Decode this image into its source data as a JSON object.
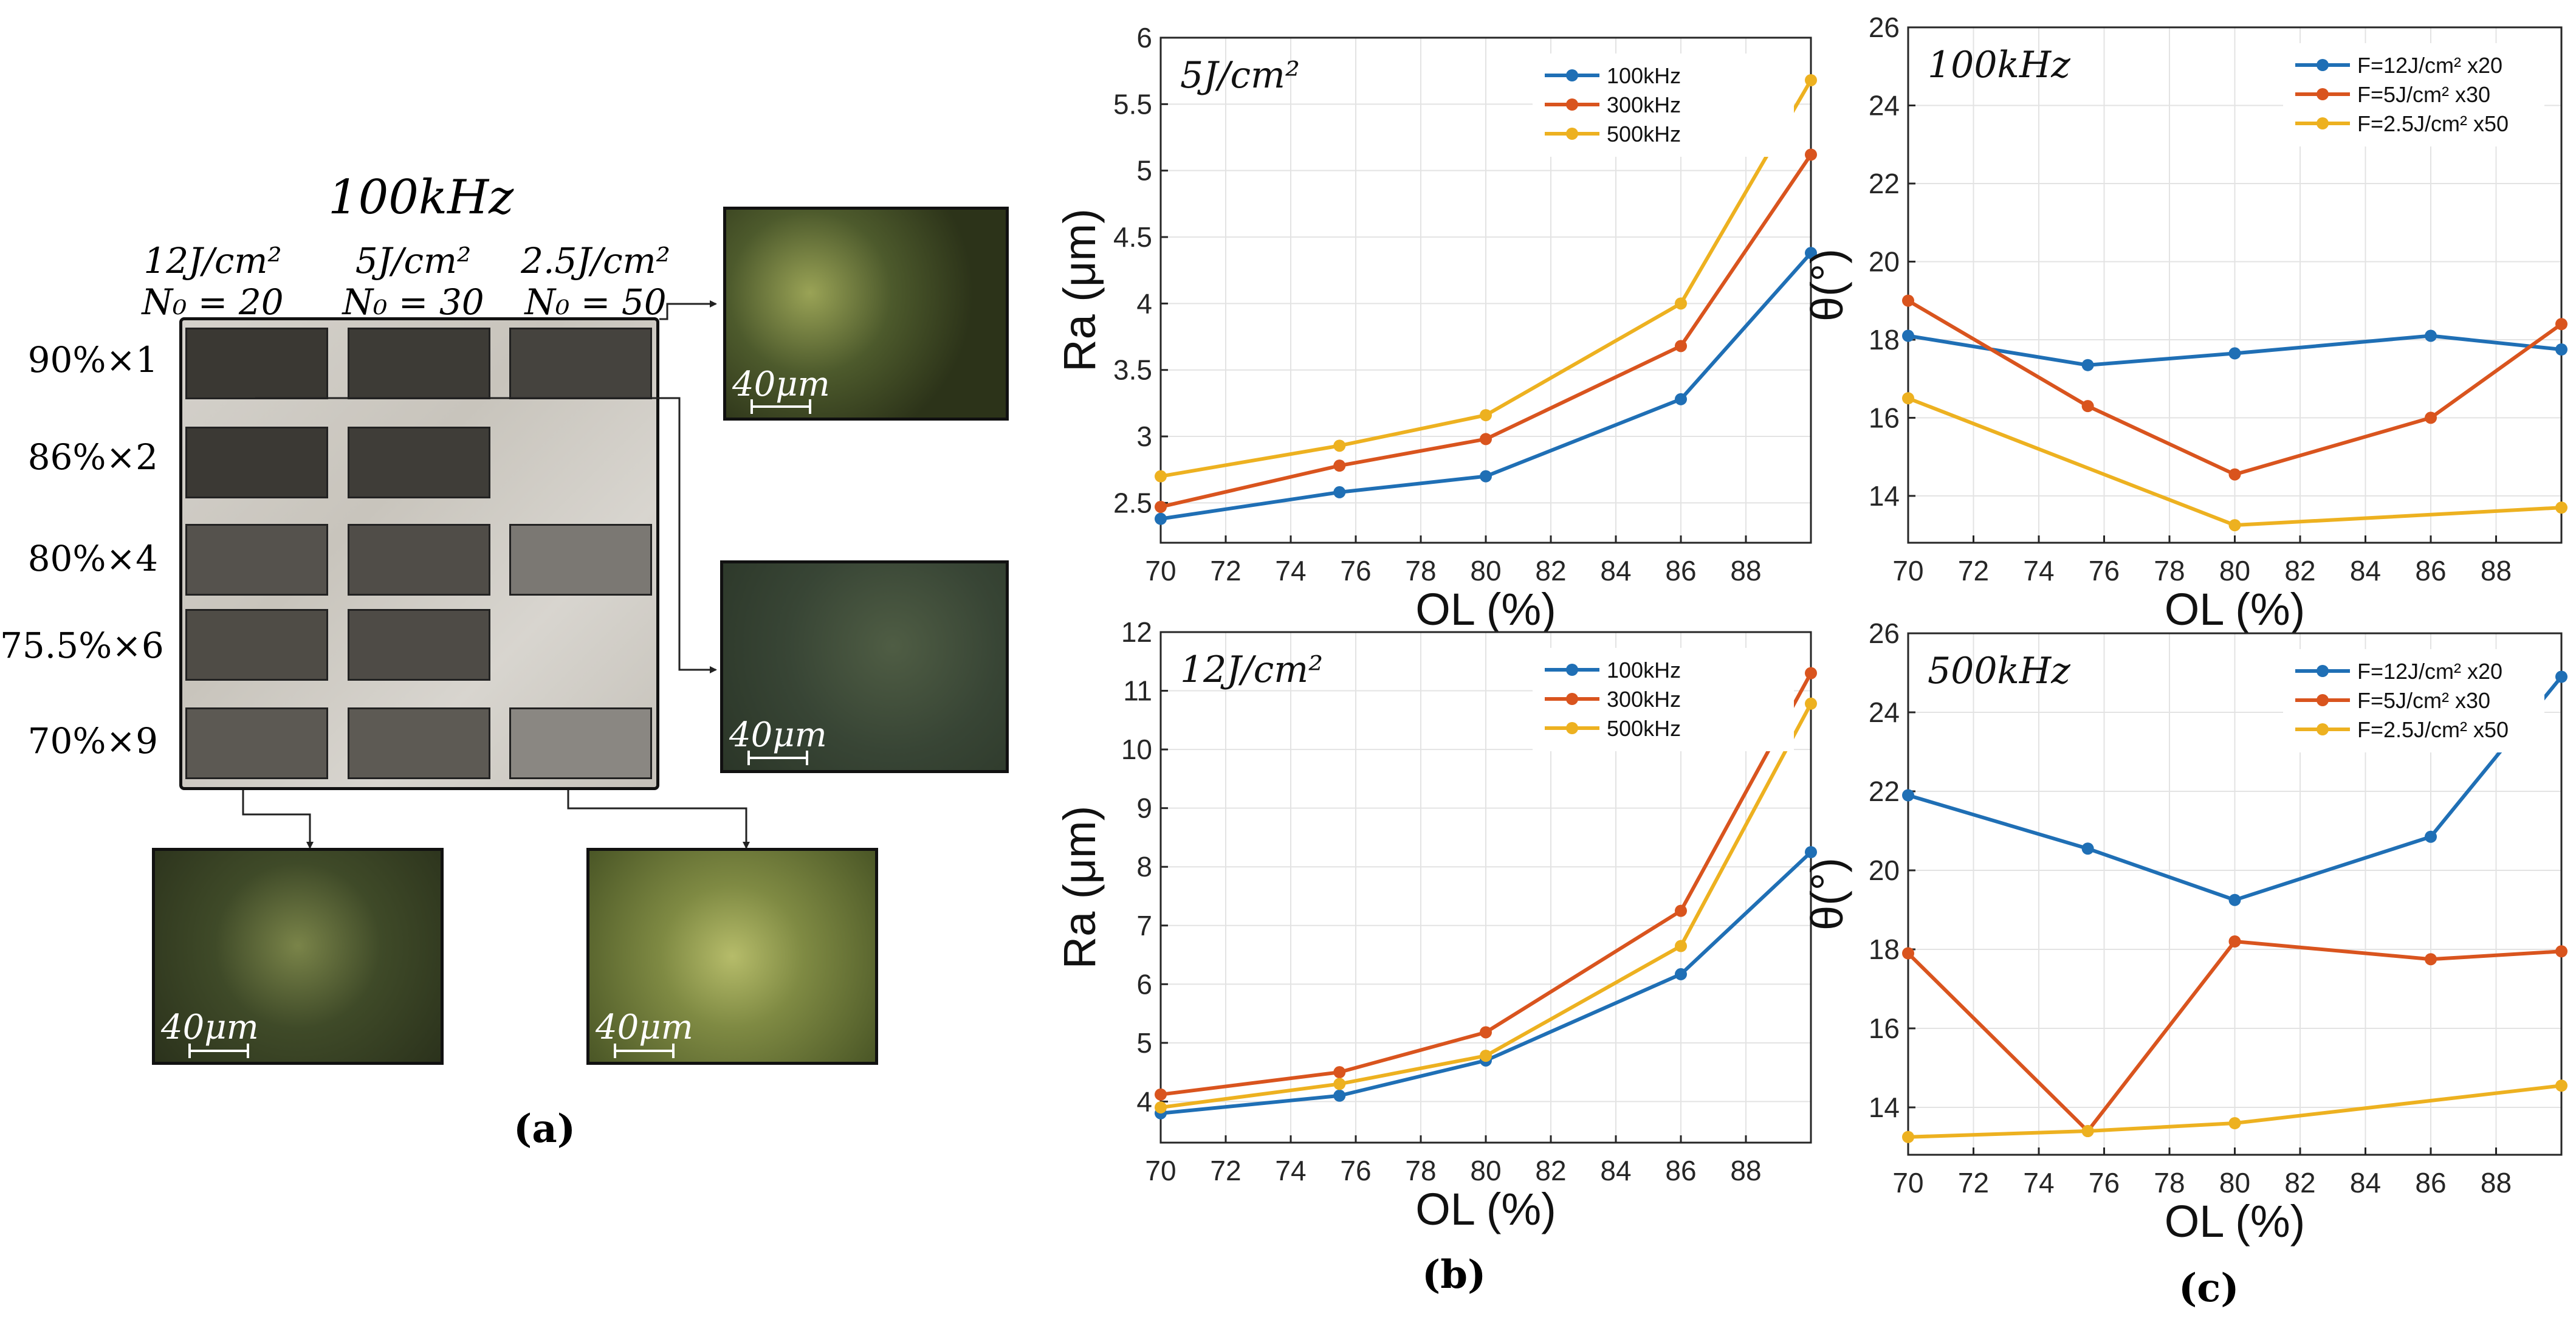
{
  "panel_a": {
    "freq_title": "100kHz",
    "columns": [
      {
        "fluence": "12J/cm²",
        "n0": "N₀ = 20"
      },
      {
        "fluence": "5J/cm²",
        "n0": "N₀ = 30"
      },
      {
        "fluence": "2.5J/cm²",
        "n0": "N₀ = 50"
      }
    ],
    "rows": [
      "90%×1",
      "86%×2",
      "80%×4",
      "75.5%×6",
      "70%×9"
    ],
    "scale_label": "40μm",
    "caption": "(a)"
  },
  "panel_captions": {
    "b": "(b)",
    "c": "(c)"
  },
  "colors": {
    "series1": "#1f6fb5",
    "series2": "#d9541e",
    "series3": "#edb120"
  },
  "chart_data": [
    {
      "type": "line",
      "annotation": "5J/cm²",
      "xlabel": "OL (%)",
      "ylabel": "Ra (μm)",
      "xlim": [
        70,
        90
      ],
      "ylim": [
        2.2,
        6
      ],
      "xticks": [
        70,
        72,
        74,
        76,
        78,
        80,
        82,
        84,
        86,
        88
      ],
      "yticks": [
        2.5,
        3,
        3.5,
        4,
        4.5,
        5,
        5.5,
        6
      ],
      "grid": true,
      "legend_position": "top-right",
      "x": [
        70,
        75.5,
        80,
        86,
        90
      ],
      "series": [
        {
          "name": "100kHz",
          "values": [
            2.38,
            2.58,
            2.7,
            3.28,
            4.38
          ]
        },
        {
          "name": "300kHz",
          "values": [
            2.47,
            2.78,
            2.98,
            3.68,
            5.12
          ]
        },
        {
          "name": "500kHz",
          "values": [
            2.7,
            2.93,
            3.16,
            4.0,
            5.68
          ]
        }
      ]
    },
    {
      "type": "line",
      "annotation": "100kHz",
      "xlabel": "OL (%)",
      "ylabel": "θ(°)",
      "xlim": [
        70,
        90
      ],
      "ylim": [
        12.8,
        26
      ],
      "xticks": [
        70,
        72,
        74,
        76,
        78,
        80,
        82,
        84,
        86,
        88
      ],
      "yticks": [
        14,
        16,
        18,
        20,
        22,
        24,
        26
      ],
      "grid": true,
      "legend_position": "top-right",
      "x": [
        70,
        75.5,
        80,
        86,
        90
      ],
      "series": [
        {
          "name": "F=12J/cm² x20",
          "values": [
            18.1,
            17.35,
            17.65,
            18.1,
            17.75
          ]
        },
        {
          "name": "F=5J/cm² x30",
          "values": [
            19.0,
            16.3,
            14.55,
            16.0,
            18.4
          ]
        },
        {
          "name": "F=2.5J/cm² x50",
          "values": [
            16.5,
            null,
            13.25,
            null,
            13.7
          ]
        }
      ]
    },
    {
      "type": "line",
      "annotation": "12J/cm²",
      "xlabel": "OL (%)",
      "ylabel": "Ra (μm)",
      "xlim": [
        70,
        90
      ],
      "ylim": [
        3.3,
        12
      ],
      "xticks": [
        70,
        72,
        74,
        76,
        78,
        80,
        82,
        84,
        86,
        88
      ],
      "yticks": [
        4,
        5,
        6,
        7,
        8,
        9,
        10,
        11,
        12
      ],
      "grid": true,
      "legend_position": "top-right",
      "x": [
        70,
        75.5,
        80,
        86,
        90
      ],
      "series": [
        {
          "name": "100kHz",
          "values": [
            3.8,
            4.1,
            4.7,
            6.17,
            8.25
          ]
        },
        {
          "name": "300kHz",
          "values": [
            4.12,
            4.5,
            5.18,
            7.25,
            11.3
          ]
        },
        {
          "name": "500kHz",
          "values": [
            3.9,
            4.3,
            4.78,
            6.65,
            10.78
          ]
        }
      ]
    },
    {
      "type": "line",
      "annotation": "500kHz",
      "xlabel": "OL (%)",
      "ylabel": "θ(°)",
      "xlim": [
        70,
        90
      ],
      "ylim": [
        12.8,
        26
      ],
      "xticks": [
        70,
        72,
        74,
        76,
        78,
        80,
        82,
        84,
        86,
        88
      ],
      "yticks": [
        14,
        16,
        18,
        20,
        22,
        24,
        26
      ],
      "grid": true,
      "legend_position": "top-right",
      "x": [
        70,
        75.5,
        80,
        86,
        90
      ],
      "series": [
        {
          "name": "F=12J/cm² x20",
          "values": [
            21.9,
            20.55,
            19.25,
            20.85,
            24.9
          ]
        },
        {
          "name": "F=5J/cm² x30",
          "values": [
            17.9,
            13.4,
            18.2,
            17.75,
            17.95
          ]
        },
        {
          "name": "F=2.5J/cm² x50",
          "values": [
            13.25,
            13.4,
            13.6,
            null,
            14.55
          ]
        }
      ]
    }
  ]
}
